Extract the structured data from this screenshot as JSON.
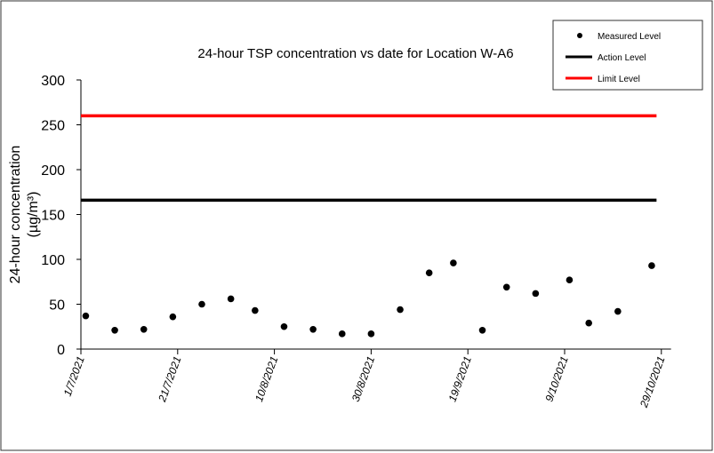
{
  "chart_data": {
    "type": "scatter-line",
    "title": "24-hour TSP concentration vs date for Location W-A6",
    "ylabel": [
      "24-hour concentration",
      "(µg/m³)"
    ],
    "xlim": [
      "1/7/2021",
      "31/10/2021"
    ],
    "xticks": [
      "1/7/2021",
      "21/7/2021",
      "10/8/2021",
      "30/8/2021",
      "19/9/2021",
      "9/10/2021",
      "29/10/2021"
    ],
    "ylim": [
      0,
      300
    ],
    "yticks": [
      0,
      50,
      100,
      150,
      200,
      250,
      300
    ],
    "grid": false,
    "legend": "top-right",
    "series": [
      {
        "name": "Measured Level",
        "kind": "scatter",
        "color": "#000000",
        "x": [
          "2/7/2021",
          "8/7/2021",
          "14/7/2021",
          "20/7/2021",
          "26/7/2021",
          "1/8/2021",
          "6/8/2021",
          "12/8/2021",
          "18/8/2021",
          "24/8/2021",
          "30/8/2021",
          "5/9/2021",
          "11/9/2021",
          "16/9/2021",
          "22/9/2021",
          "27/9/2021",
          "3/10/2021",
          "10/10/2021",
          "14/10/2021",
          "20/10/2021",
          "27/10/2021"
        ],
        "values": [
          37,
          21,
          22,
          36,
          50,
          56,
          43,
          25,
          22,
          17,
          17,
          44,
          85,
          96,
          21,
          69,
          62,
          77,
          29,
          42,
          93
        ]
      },
      {
        "name": "Action Level",
        "kind": "line",
        "color": "#000000",
        "x": [
          "1/7/2021",
          "28/10/2021"
        ],
        "values": [
          166,
          166
        ]
      },
      {
        "name": "Limit Level",
        "kind": "line",
        "color": "#ff0000",
        "x": [
          "1/7/2021",
          "28/10/2021"
        ],
        "values": [
          260,
          260
        ]
      }
    ]
  }
}
